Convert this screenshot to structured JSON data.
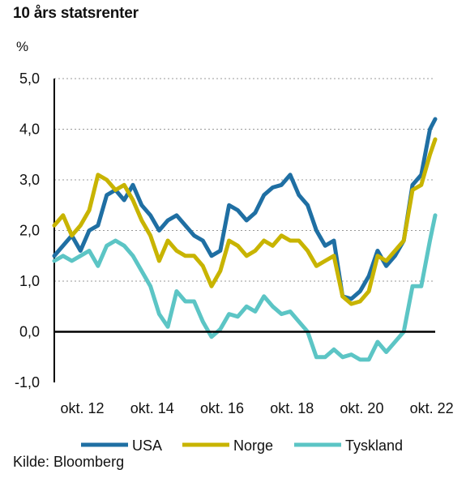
{
  "chart_data": {
    "type": "line",
    "title": "10 års statsrenter",
    "ylabel": "%",
    "source": "Kilde: Bloomberg",
    "ylim": [
      -1.0,
      5.0
    ],
    "xlim": [
      2012.0,
      2022.9
    ],
    "y_ticks": [
      5.0,
      4.0,
      3.0,
      2.0,
      1.0,
      0.0,
      -1.0
    ],
    "y_tick_labels": [
      "5,0",
      "4,0",
      "3,0",
      "2,0",
      "1,0",
      "0,0",
      "-1,0"
    ],
    "x_ticks": [
      2012.8,
      2014.8,
      2016.8,
      2018.8,
      2020.8,
      2022.8
    ],
    "x_tick_labels": [
      "okt. 12",
      "okt. 14",
      "okt. 16",
      "okt. 18",
      "okt. 20",
      "okt. 22"
    ],
    "grid": "horizontal dotted",
    "legend_position": "bottom",
    "colors": {
      "USA": "#1f6fa3",
      "Norge": "#c8b400",
      "Tyskland": "#5cc5c5",
      "zero_line": "#000000"
    },
    "series": [
      {
        "name": "USA",
        "x": [
          2012.0,
          2012.25,
          2012.5,
          2012.75,
          2013.0,
          2013.25,
          2013.5,
          2013.75,
          2014.0,
          2014.25,
          2014.5,
          2014.75,
          2015.0,
          2015.25,
          2015.5,
          2015.75,
          2016.0,
          2016.25,
          2016.5,
          2016.75,
          2017.0,
          2017.25,
          2017.5,
          2017.75,
          2018.0,
          2018.25,
          2018.5,
          2018.75,
          2019.0,
          2019.25,
          2019.5,
          2019.75,
          2020.0,
          2020.25,
          2020.5,
          2020.75,
          2021.0,
          2021.25,
          2021.5,
          2021.75,
          2022.0,
          2022.25,
          2022.5,
          2022.75,
          2022.9
        ],
        "values": [
          1.5,
          1.7,
          1.9,
          1.6,
          2.0,
          2.1,
          2.7,
          2.8,
          2.6,
          2.9,
          2.5,
          2.3,
          2.0,
          2.2,
          2.3,
          2.1,
          1.9,
          1.8,
          1.5,
          1.6,
          2.5,
          2.4,
          2.2,
          2.35,
          2.7,
          2.85,
          2.9,
          3.1,
          2.7,
          2.5,
          2.0,
          1.7,
          1.8,
          0.7,
          0.65,
          0.8,
          1.1,
          1.6,
          1.3,
          1.5,
          1.8,
          2.9,
          3.1,
          4.0,
          4.2
        ]
      },
      {
        "name": "Norge",
        "x": [
          2012.0,
          2012.25,
          2012.5,
          2012.75,
          2013.0,
          2013.25,
          2013.5,
          2013.75,
          2014.0,
          2014.25,
          2014.5,
          2014.75,
          2015.0,
          2015.25,
          2015.5,
          2015.75,
          2016.0,
          2016.25,
          2016.5,
          2016.75,
          2017.0,
          2017.25,
          2017.5,
          2017.75,
          2018.0,
          2018.25,
          2018.5,
          2018.75,
          2019.0,
          2019.25,
          2019.5,
          2019.75,
          2020.0,
          2020.25,
          2020.5,
          2020.75,
          2021.0,
          2021.25,
          2021.5,
          2021.75,
          2022.0,
          2022.25,
          2022.5,
          2022.75,
          2022.9
        ],
        "values": [
          2.1,
          2.3,
          1.9,
          2.1,
          2.4,
          3.1,
          3.0,
          2.8,
          2.9,
          2.6,
          2.2,
          1.9,
          1.4,
          1.8,
          1.6,
          1.5,
          1.5,
          1.3,
          0.9,
          1.2,
          1.8,
          1.7,
          1.5,
          1.6,
          1.8,
          1.7,
          1.9,
          1.8,
          1.8,
          1.6,
          1.3,
          1.4,
          1.5,
          0.7,
          0.55,
          0.6,
          0.8,
          1.5,
          1.4,
          1.6,
          1.8,
          2.8,
          2.9,
          3.5,
          3.8
        ]
      },
      {
        "name": "Tyskland",
        "x": [
          2012.0,
          2012.25,
          2012.5,
          2012.75,
          2013.0,
          2013.25,
          2013.5,
          2013.75,
          2014.0,
          2014.25,
          2014.5,
          2014.75,
          2015.0,
          2015.25,
          2015.5,
          2015.75,
          2016.0,
          2016.25,
          2016.5,
          2016.75,
          2017.0,
          2017.25,
          2017.5,
          2017.75,
          2018.0,
          2018.25,
          2018.5,
          2018.75,
          2019.0,
          2019.25,
          2019.5,
          2019.75,
          2020.0,
          2020.25,
          2020.5,
          2020.75,
          2021.0,
          2021.25,
          2021.5,
          2021.75,
          2022.0,
          2022.25,
          2022.5,
          2022.75,
          2022.9
        ],
        "values": [
          1.4,
          1.5,
          1.4,
          1.5,
          1.6,
          1.3,
          1.7,
          1.8,
          1.7,
          1.5,
          1.2,
          0.9,
          0.35,
          0.1,
          0.8,
          0.6,
          0.6,
          0.2,
          -0.1,
          0.05,
          0.35,
          0.3,
          0.5,
          0.4,
          0.7,
          0.5,
          0.35,
          0.4,
          0.2,
          0.0,
          -0.5,
          -0.5,
          -0.35,
          -0.5,
          -0.45,
          -0.55,
          -0.55,
          -0.2,
          -0.4,
          -0.2,
          0.0,
          0.9,
          0.9,
          1.8,
          2.3
        ]
      }
    ]
  }
}
